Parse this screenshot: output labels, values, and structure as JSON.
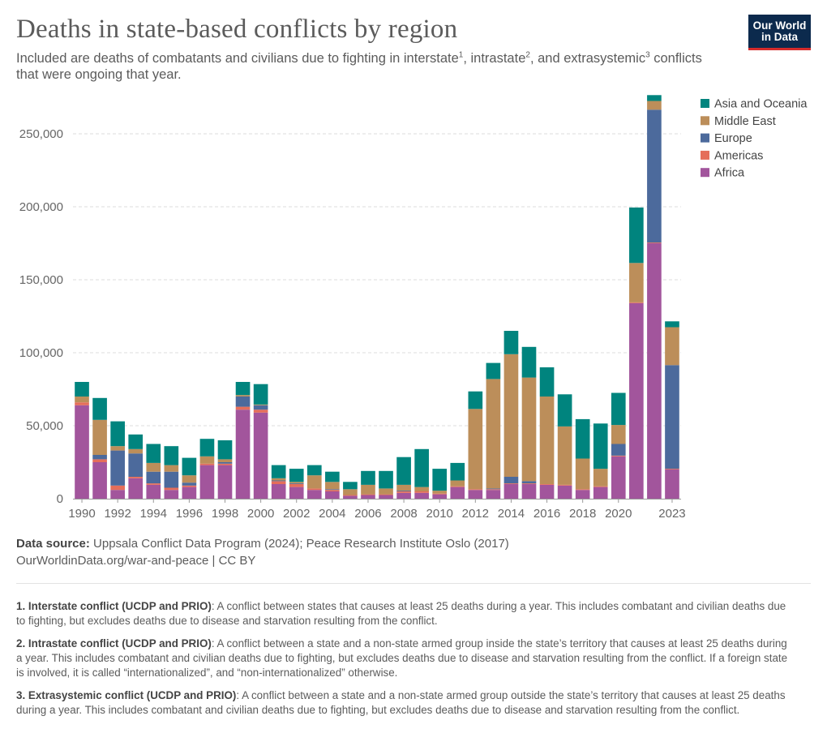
{
  "header": {
    "title": "Deaths in state-based conflicts by region",
    "subtitle_parts": [
      "Included are deaths of combatants and civilians due to fighting in interstate",
      "1",
      ", intrastate",
      "2",
      ", and extrasystemic",
      "3",
      " conflicts that were ongoing that year."
    ],
    "logo_line1": "Our World",
    "logo_line2": "in Data"
  },
  "chart_data": {
    "type": "bar",
    "stacked": true,
    "x": [
      1990,
      1991,
      1992,
      1993,
      1994,
      1995,
      1996,
      1997,
      1998,
      1999,
      2000,
      2001,
      2002,
      2003,
      2004,
      2005,
      2006,
      2007,
      2008,
      2009,
      2010,
      2011,
      2012,
      2013,
      2014,
      2015,
      2016,
      2017,
      2018,
      2019,
      2020,
      2021,
      2022,
      2023
    ],
    "x_tick_labels": [
      "1990",
      "1992",
      "1994",
      "1996",
      "1998",
      "2000",
      "2002",
      "2004",
      "2006",
      "2008",
      "2010",
      "2012",
      "2014",
      "2016",
      "2018",
      "2020",
      "2023"
    ],
    "series": [
      {
        "name": "Africa",
        "color": "#a2559c",
        "values": [
          64000,
          25000,
          6000,
          14000,
          9500,
          6000,
          8000,
          23000,
          23000,
          61000,
          59000,
          10000,
          8000,
          6000,
          5000,
          2000,
          2500,
          2500,
          4000,
          4000,
          3000,
          8000,
          6000,
          6000,
          10000,
          10000,
          9500,
          9000,
          6000,
          8000,
          29000,
          134000,
          175000,
          20000
        ]
      },
      {
        "name": "Americas",
        "color": "#e56e5a",
        "values": [
          2000,
          2000,
          3000,
          1000,
          1000,
          1500,
          1000,
          1000,
          1000,
          2000,
          2000,
          2000,
          2000,
          1000,
          1000,
          500,
          500,
          500,
          1000,
          1000,
          500,
          500,
          500,
          500,
          500,
          500,
          500,
          500,
          500,
          500,
          500,
          500,
          500,
          500
        ]
      },
      {
        "name": "Europe",
        "color": "#4c6a9c",
        "values": [
          0,
          3000,
          24000,
          16000,
          8000,
          11000,
          2000,
          0,
          1000,
          7000,
          3000,
          500,
          500,
          0,
          500,
          0,
          0,
          0,
          500,
          0,
          0,
          0,
          0,
          500,
          4500,
          1500,
          0,
          0,
          0,
          0,
          8000,
          0,
          91000,
          71000
        ]
      },
      {
        "name": "Middle East",
        "color": "#bc8e5a",
        "values": [
          4000,
          24000,
          3000,
          3000,
          6000,
          4500,
          5000,
          5000,
          2000,
          1000,
          500,
          1500,
          1000,
          9000,
          5000,
          4000,
          6500,
          4000,
          4000,
          3000,
          2000,
          4000,
          55000,
          75000,
          84000,
          71000,
          60000,
          40000,
          21000,
          12000,
          13000,
          27000,
          6000,
          26000
        ]
      },
      {
        "name": "Asia and Oceania",
        "color": "#00847e",
        "values": [
          10000,
          15000,
          17000,
          10000,
          13000,
          13000,
          12000,
          12000,
          13000,
          9000,
          14000,
          9000,
          9000,
          7000,
          7000,
          5000,
          9500,
          12000,
          19000,
          26000,
          15000,
          12000,
          12000,
          11000,
          16000,
          21000,
          20000,
          22000,
          27000,
          31000,
          22000,
          38000,
          4000,
          4000
        ]
      }
    ],
    "legend_order": [
      "Asia and Oceania",
      "Middle East",
      "Europe",
      "Americas",
      "Africa"
    ],
    "legend_position": "top-right",
    "ylim": [
      0,
      275000
    ],
    "y_ticks": [
      0,
      50000,
      100000,
      150000,
      200000,
      250000
    ],
    "y_tick_labels": [
      "0",
      "50,000",
      "100,000",
      "150,000",
      "200,000",
      "250,000"
    ],
    "grid": "horizontal dashed",
    "xlabel": "",
    "ylabel": ""
  },
  "footer": {
    "source_label": "Data source:",
    "source_text": " Uppsala Conflict Data Program (2024); Peace Research Institute Oslo (2017)",
    "link_text": "OurWorldinData.org/war-and-peace | CC BY"
  },
  "notes": [
    {
      "label": "1. Interstate conflict (UCDP and PRIO)",
      "text": ": A conflict between states that causes at least 25 deaths during a year. This includes combatant and civilian deaths due to fighting, but excludes deaths due to disease and starvation resulting from the conflict."
    },
    {
      "label": "2. Intrastate conflict (UCDP and PRIO)",
      "text": ": A conflict between a state and a non-state armed group inside the state’s territory that causes at least 25 deaths during a year. This includes combatant and civilian deaths due to fighting, but excludes deaths due to disease and starvation resulting from the conflict. If a foreign state is involved, it is called “internationalized”, and “non-internationalized” otherwise."
    },
    {
      "label": "3. Extrasystemic conflict (UCDP and PRIO)",
      "text": ": A conflict between a state and a non-state armed group outside the state’s territory that causes at least 25 deaths during a year. This includes combatant and civilian deaths due to fighting, but excludes deaths due to disease and starvation resulting from the conflict."
    }
  ]
}
